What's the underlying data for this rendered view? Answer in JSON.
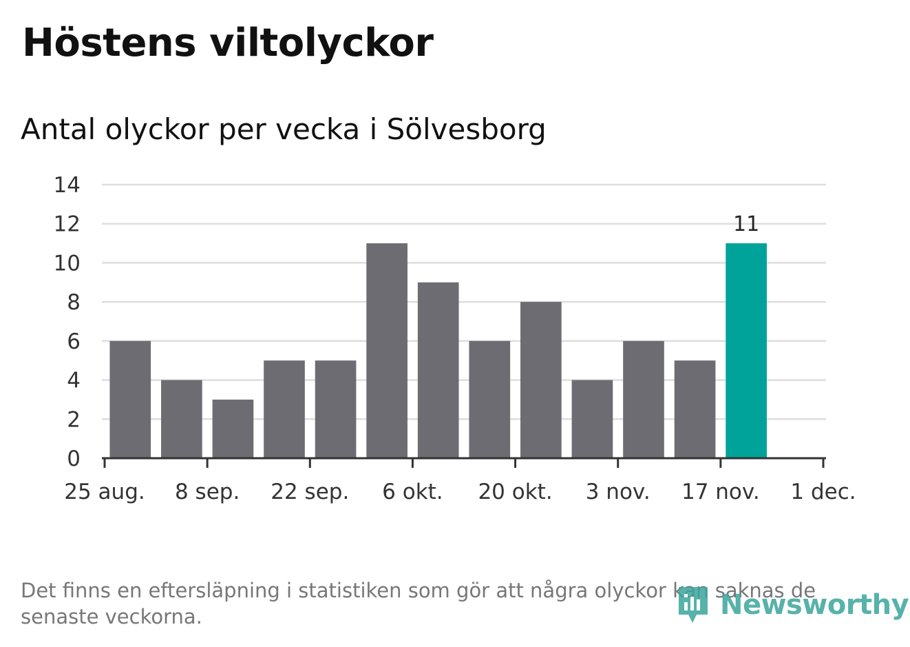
{
  "title": "Höstens viltolyckor",
  "subtitle": "Antal olyckor per vecka i Sölvesborg",
  "note": "Det finns en eftersläpning i statistiken som gör att några olyckor kan saknas de senaste veckorna.",
  "logo": {
    "text": "Newsworthy",
    "icon": "newsworthy-logo-icon"
  },
  "colors": {
    "bar": "#6d6c72",
    "highlight": "#00a39a",
    "grid": "#dddddd",
    "axis": "#333333"
  },
  "chart_data": {
    "type": "bar",
    "x_axis": {
      "ticks": [
        "25 aug.",
        "8 sep.",
        "22 sep.",
        "6 okt.",
        "20 okt.",
        "3 nov.",
        "17 nov.",
        "1 dec."
      ],
      "range": [
        "2024-08-25",
        "2024-12-01"
      ]
    },
    "y_axis": {
      "ticks": [
        0,
        2,
        4,
        6,
        8,
        10,
        12,
        14
      ],
      "ylim": [
        0,
        14
      ]
    },
    "grid": true,
    "weeks": [
      "2024-09-01",
      "2024-09-08",
      "2024-09-15",
      "2024-09-22",
      "2024-09-29",
      "2024-10-06",
      "2024-10-13",
      "2024-10-20",
      "2024-10-27",
      "2024-11-03",
      "2024-11-10",
      "2024-11-17",
      "2024-11-24"
    ],
    "values": [
      6,
      4,
      3,
      5,
      5,
      11,
      9,
      6,
      8,
      4,
      6,
      5,
      11
    ],
    "highlight_last": true,
    "data_labels": [
      {
        "week": "2024-11-24",
        "text": "11"
      }
    ]
  }
}
